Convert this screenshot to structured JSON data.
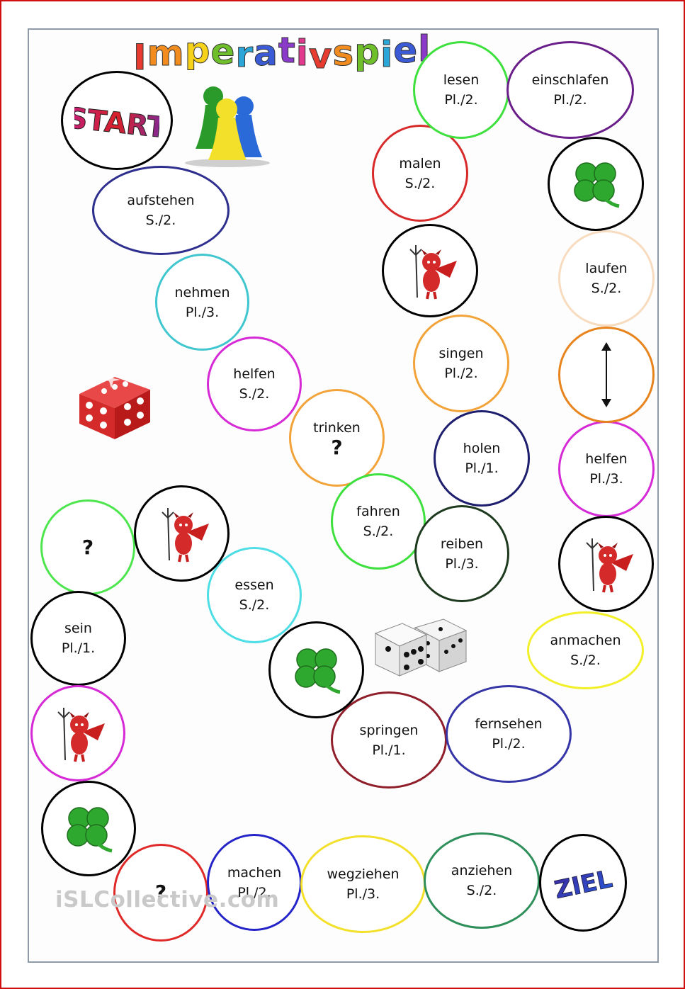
{
  "title": "Imperativspiel",
  "title_colors": [
    "#e63b2e",
    "#f28c1e",
    "#f6d21a",
    "#6fbf2a",
    "#2aa7d8",
    "#3b5bd6",
    "#8b3bc9",
    "#e23b8d",
    "#e63b2e",
    "#f28c1e",
    "#6fbf2a",
    "#2aa7d8",
    "#3b5bd6",
    "#8b3bc9"
  ],
  "start_label": "START",
  "goal_label": "ZIEL",
  "watermark": "iSLCollective.com",
  "fields": [
    {
      "id": "aufstehen",
      "word": "aufstehen",
      "grammar": "S./2.",
      "color": "#2e2e8f"
    },
    {
      "id": "nehmen",
      "word": "nehmen",
      "grammar": "Pl./3.",
      "color": "#3fc6cf"
    },
    {
      "id": "helfen-1",
      "word": "helfen",
      "grammar": "S./2.",
      "color": "#d62ad6"
    },
    {
      "id": "trinken",
      "word": "trinken",
      "grammar": "?",
      "color": "#f2a33a"
    },
    {
      "id": "fahren",
      "word": "fahren",
      "grammar": "S./2.",
      "color": "#3de03d"
    },
    {
      "id": "question-1",
      "word": "",
      "grammar": "?",
      "color": "#4ee64e"
    },
    {
      "id": "essen",
      "word": "essen",
      "grammar": "S./2.",
      "color": "#4fdde6"
    },
    {
      "id": "sein",
      "word": "sein",
      "grammar": "Pl./1.",
      "color": "#000000"
    },
    {
      "id": "question-2",
      "word": "",
      "grammar": "?",
      "color": "#e02a2a"
    },
    {
      "id": "machen",
      "word": "machen",
      "grammar": "Pl./2.",
      "color": "#2424c8"
    },
    {
      "id": "wegziehen",
      "word": "wegziehen",
      "grammar": "Pl./3.",
      "color": "#f2e02a"
    },
    {
      "id": "anziehen",
      "word": "anziehen",
      "grammar": "S./2.",
      "color": "#2e8f5a"
    },
    {
      "id": "springen",
      "word": "springen",
      "grammar": "Pl./1.",
      "color": "#8f1e2a"
    },
    {
      "id": "fernsehen",
      "word": "fernsehen",
      "grammar": "Pl./2.",
      "color": "#3535a8"
    },
    {
      "id": "anmachen",
      "word": "anmachen",
      "grammar": "S./2.",
      "color": "#f2f02a"
    },
    {
      "id": "reiben",
      "word": "reiben",
      "grammar": "Pl./3.",
      "color": "#1e3a1e"
    },
    {
      "id": "holen",
      "word": "holen",
      "grammar": "Pl./1.",
      "color": "#1e1e6e"
    },
    {
      "id": "singen",
      "word": "singen",
      "grammar": "Pl./2.",
      "color": "#f2a33a"
    },
    {
      "id": "malen",
      "word": "malen",
      "grammar": "S./2.",
      "color": "#d82a2a"
    },
    {
      "id": "lesen",
      "word": "lesen",
      "grammar": "Pl./2.",
      "color": "#3de03d"
    },
    {
      "id": "einschlafen",
      "word": "einschlafen",
      "grammar": "Pl./2.",
      "color": "#6a1e8a"
    },
    {
      "id": "laufen",
      "word": "laufen",
      "grammar": "S./2.",
      "color": "#f7dcc0"
    },
    {
      "id": "helfen-2",
      "word": "helfen",
      "grammar": "Pl./3.",
      "color": "#d62ad6"
    }
  ],
  "special_fields": [
    {
      "id": "clover-1",
      "kind": "clover"
    },
    {
      "id": "clover-2",
      "kind": "clover"
    },
    {
      "id": "clover-3",
      "kind": "clover"
    },
    {
      "id": "devil-1",
      "kind": "devil"
    },
    {
      "id": "devil-2",
      "kind": "devil"
    },
    {
      "id": "devil-3",
      "kind": "devil"
    },
    {
      "id": "devil-4",
      "kind": "devil"
    },
    {
      "id": "swap",
      "kind": "double-arrow"
    }
  ]
}
